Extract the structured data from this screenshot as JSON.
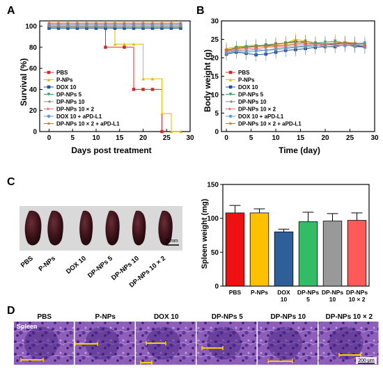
{
  "panel_labels": [
    "A",
    "B",
    "C",
    "D"
  ],
  "chart_data": [
    {
      "id": "A",
      "type": "line",
      "xlabel": "Days post treatment",
      "ylabel": "Survival (%)",
      "xlim": [
        -2,
        30
      ],
      "ylim": [
        0,
        105
      ],
      "xticks": [
        0,
        5,
        10,
        15,
        20,
        25,
        30
      ],
      "yticks": [
        0,
        20,
        40,
        60,
        80,
        100
      ],
      "legend_position": "bottom-left",
      "series": [
        {
          "name": "PBS",
          "color": "#d62728",
          "marker": "square",
          "x": [
            0,
            10,
            12,
            16,
            18,
            20,
            22,
            24
          ],
          "y": [
            100,
            100,
            80,
            80,
            40,
            40,
            40,
            0
          ]
        },
        {
          "name": "P-NPs",
          "color": "#e6b800",
          "marker": "triangle",
          "x": [
            0,
            12,
            14,
            16,
            18,
            20,
            22,
            24,
            26,
            28
          ],
          "y": [
            100,
            100,
            83,
            83,
            83,
            50,
            50,
            17,
            0,
            0
          ]
        },
        {
          "name": "DOX 10",
          "color": "#1f4fa0",
          "marker": "square",
          "x": [
            0,
            2,
            4,
            6,
            8,
            10,
            12,
            14,
            16,
            18,
            20,
            22,
            24,
            26,
            28
          ],
          "y": [
            98,
            98,
            98,
            98,
            98,
            98,
            98,
            98,
            98,
            98,
            98,
            98,
            98,
            98,
            98
          ]
        },
        {
          "name": "DP-NPs 5",
          "color": "#2ca05a",
          "marker": "triangle-down",
          "x": [
            0,
            2,
            4,
            6,
            8,
            10,
            12,
            14,
            16,
            18,
            20,
            22,
            24,
            26,
            28
          ],
          "y": [
            99,
            99,
            99,
            99,
            99,
            99,
            99,
            99,
            99,
            99,
            99,
            99,
            99,
            99,
            99
          ]
        },
        {
          "name": "DP-NPs 10",
          "color": "#8c8c8c",
          "marker": "triangle-left",
          "x": [
            0,
            2,
            4,
            6,
            8,
            10,
            12,
            14,
            16,
            18,
            20,
            22,
            24,
            26,
            28
          ],
          "y": [
            100,
            100,
            100,
            100,
            100,
            100,
            100,
            100,
            100,
            100,
            100,
            100,
            100,
            100,
            100
          ]
        },
        {
          "name": "DP-NPs 10 × 2",
          "color": "#e8707a",
          "marker": "triangle-right",
          "x": [
            0,
            2,
            4,
            6,
            8,
            10,
            12,
            14,
            16,
            18,
            20,
            22,
            24,
            26,
            28
          ],
          "y": [
            101,
            101,
            101,
            101,
            101,
            101,
            101,
            101,
            101,
            101,
            101,
            101,
            101,
            101,
            101
          ]
        },
        {
          "name": "DOX 10 + aPD-L1",
          "color": "#5b9bd5",
          "marker": "circle",
          "x": [
            0,
            2,
            4,
            6,
            8,
            10,
            12,
            14,
            16,
            18,
            20,
            22,
            24,
            26,
            28
          ],
          "y": [
            102,
            102,
            102,
            102,
            102,
            102,
            102,
            102,
            102,
            102,
            102,
            102,
            102,
            102,
            102
          ]
        },
        {
          "name": "DP-NPs 10 × 2 + aPD-L1",
          "color": "#c07830",
          "marker": "star",
          "x": [
            0,
            2,
            4,
            6,
            8,
            10,
            12,
            14,
            16,
            18,
            20,
            22,
            24,
            26,
            28
          ],
          "y": [
            103,
            103,
            103,
            103,
            103,
            103,
            103,
            103,
            103,
            103,
            103,
            103,
            103,
            103,
            103
          ]
        }
      ]
    },
    {
      "id": "B",
      "type": "line",
      "xlabel": "Time (day)",
      "ylabel": "Body weight (g)",
      "xlim": [
        -1,
        30
      ],
      "ylim": [
        0,
        30
      ],
      "xticks": [
        0,
        5,
        10,
        15,
        20,
        25,
        30
      ],
      "yticks": [
        0,
        5,
        10,
        15,
        20,
        25,
        30
      ],
      "error_bars": true,
      "legend_position": "bottom-left",
      "x": [
        0,
        2,
        4,
        6,
        8,
        10,
        12,
        14,
        16,
        18,
        20,
        22,
        24,
        26,
        28
      ],
      "series": [
        {
          "name": "PBS",
          "color": "#d62728",
          "marker": "square",
          "y": [
            22.0,
            22.5,
            22.8,
            23.0,
            23.3,
            23.5,
            24.0,
            24.5,
            24.0,
            23.8,
            23.5,
            23.8,
            24.0,
            23.5,
            23.0
          ]
        },
        {
          "name": "P-NPs",
          "color": "#e6b800",
          "marker": "triangle",
          "y": [
            22.5,
            23.0,
            23.2,
            23.5,
            23.0,
            23.5,
            24.0,
            25.0,
            24.5,
            24.0,
            23.8,
            24.0,
            24.2,
            24.0,
            23.5
          ]
        },
        {
          "name": "DOX 10",
          "color": "#1f4fa0",
          "marker": "square",
          "y": [
            21.0,
            21.5,
            21.2,
            20.8,
            21.0,
            21.5,
            22.0,
            22.2,
            22.5,
            22.8,
            23.0,
            23.0,
            23.5,
            23.2,
            23.0
          ]
        },
        {
          "name": "DP-NPs 5",
          "color": "#2ca05a",
          "marker": "triangle-down",
          "y": [
            22.0,
            22.8,
            23.0,
            23.2,
            23.5,
            23.8,
            24.0,
            24.2,
            24.5,
            24.0,
            24.2,
            24.5,
            24.0,
            23.8,
            24.0
          ]
        },
        {
          "name": "DP-NPs 10",
          "color": "#8c8c8c",
          "marker": "triangle-left",
          "y": [
            21.5,
            22.0,
            22.0,
            22.2,
            22.0,
            22.5,
            22.8,
            23.0,
            23.2,
            23.5,
            23.0,
            23.2,
            23.5,
            23.0,
            22.8
          ]
        },
        {
          "name": "DP-NPs 10 × 2",
          "color": "#e8707a",
          "marker": "triangle-right",
          "y": [
            21.8,
            22.2,
            22.5,
            22.5,
            22.8,
            23.0,
            23.2,
            23.5,
            23.5,
            23.8,
            23.5,
            23.5,
            23.8,
            23.5,
            23.2
          ]
        },
        {
          "name": "DOX 10 + aPD-L1",
          "color": "#5b9bd5",
          "marker": "circle",
          "y": [
            21.2,
            21.8,
            21.5,
            21.8,
            22.0,
            22.2,
            22.5,
            22.8,
            23.0,
            23.2,
            23.5,
            23.5,
            23.2,
            23.5,
            23.8
          ]
        },
        {
          "name": "DP-NPs 10 × 2 + aPD-L1",
          "color": "#c07830",
          "marker": "star",
          "y": [
            22.2,
            22.5,
            22.8,
            23.0,
            23.2,
            23.2,
            23.5,
            23.8,
            24.0,
            23.8,
            23.8,
            24.0,
            24.2,
            24.0,
            23.8
          ]
        }
      ]
    },
    {
      "id": "C",
      "type": "bar",
      "ylabel": "Spleen weight (mg)",
      "ylim": [
        0,
        150
      ],
      "yticks": [
        0,
        50,
        100,
        150
      ],
      "categories": [
        "PBS",
        "P-NPs",
        "DOX 10",
        "DP-NPs 5",
        "DP-NPs 10",
        "DP-NPs 10 × 2"
      ],
      "category_lines": [
        [
          "PBS"
        ],
        [
          "P-NPs"
        ],
        [
          "DOX",
          "10"
        ],
        [
          "DP-NPs",
          "5"
        ],
        [
          "DP-NPs",
          "10"
        ],
        [
          "DP-NPs",
          "10 × 2"
        ]
      ],
      "values": [
        108,
        108,
        80,
        95,
        96,
        97
      ],
      "errors": [
        11,
        6,
        4,
        14,
        11,
        11
      ],
      "colors": [
        "#ee1111",
        "#ffc000",
        "#2e5f99",
        "#33bb66",
        "#999999",
        "#ff5a5a"
      ]
    }
  ],
  "spleen_photo": {
    "labels": [
      "PBS",
      "P-NPs",
      "DOX 10",
      "DP-NPs 5",
      "DP-NPs 10",
      "DP-NPs 10 × 2"
    ],
    "scale_label": "5 mm"
  },
  "histology": {
    "titles": [
      "PBS",
      "P-NPs",
      "DOX 10",
      "DP-NPs 5",
      "DP-NPs 10",
      "DP-NPs 10 × 2"
    ],
    "tissue_label": "Spleen",
    "scale_label": "200 μm"
  }
}
